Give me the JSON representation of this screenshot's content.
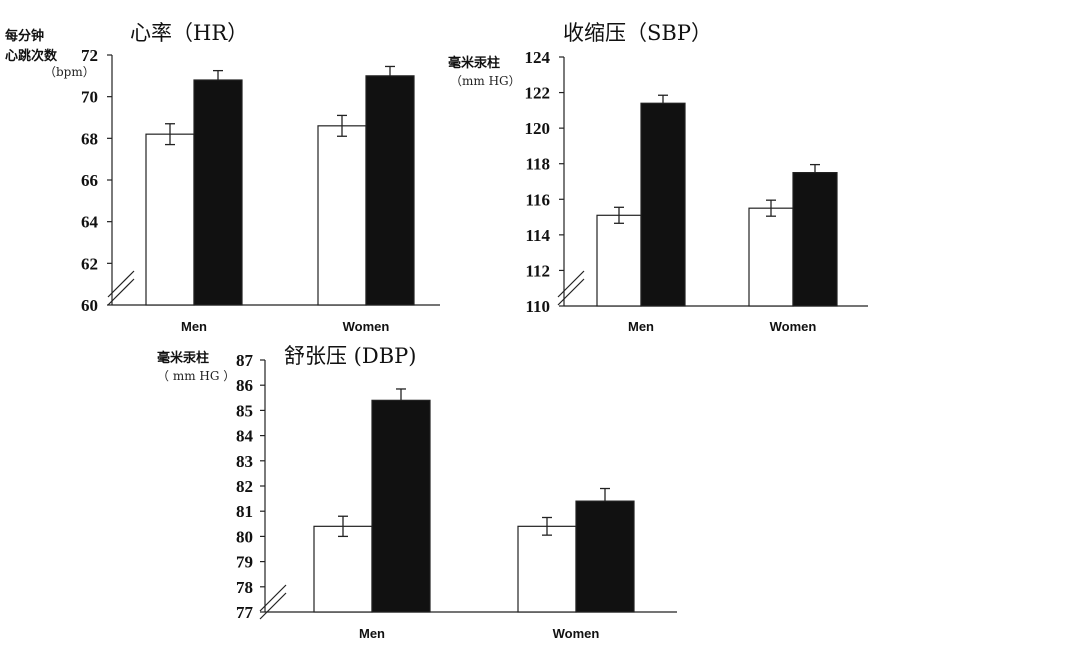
{
  "chart_data": [
    {
      "type": "bar",
      "title": "心率（HR）",
      "ylabel_lines": [
        "每分钟",
        "心跳次数"
      ],
      "unit": "（bpm）",
      "categories": [
        "Men",
        "Women"
      ],
      "ylim": [
        60,
        72
      ],
      "yticks": [
        60,
        62,
        64,
        66,
        68,
        70,
        72
      ],
      "axis_break": true,
      "grid": false,
      "bar_colors": [
        "#ffffff",
        "#111111"
      ],
      "series": [
        {
          "values": [
            68.2,
            68.6
          ],
          "errors": [
            0.5,
            0.5
          ]
        },
        {
          "values": [
            70.8,
            71.0
          ],
          "errors": [
            0.45,
            0.45
          ]
        }
      ]
    },
    {
      "type": "bar",
      "title": "收缩压（SBP）",
      "ylabel_lines": [
        "毫米汞柱"
      ],
      "unit": "（mm HG）",
      "categories": [
        "Men",
        "Women"
      ],
      "ylim": [
        110,
        124
      ],
      "yticks": [
        110,
        112,
        114,
        116,
        118,
        120,
        122,
        124
      ],
      "axis_break": true,
      "grid": false,
      "bar_colors": [
        "#ffffff",
        "#111111"
      ],
      "series": [
        {
          "values": [
            115.1,
            115.5
          ],
          "errors": [
            0.45,
            0.45
          ]
        },
        {
          "values": [
            121.4,
            117.5
          ],
          "errors": [
            0.45,
            0.45
          ]
        }
      ]
    },
    {
      "type": "bar",
      "title": "舒张压 (DBP)",
      "ylabel_lines": [
        "毫米汞柱"
      ],
      "unit": "（ mm HG ）",
      "categories": [
        "Men",
        "Women"
      ],
      "ylim": [
        77,
        87
      ],
      "yticks": [
        77,
        78,
        79,
        80,
        81,
        82,
        83,
        84,
        85,
        86,
        87
      ],
      "axis_break": true,
      "grid": false,
      "bar_colors": [
        "#ffffff",
        "#111111"
      ],
      "series": [
        {
          "values": [
            80.4,
            80.4
          ],
          "errors": [
            0.4,
            0.35
          ]
        },
        {
          "values": [
            85.4,
            81.4
          ],
          "errors": [
            0.45,
            0.5
          ]
        }
      ]
    }
  ]
}
